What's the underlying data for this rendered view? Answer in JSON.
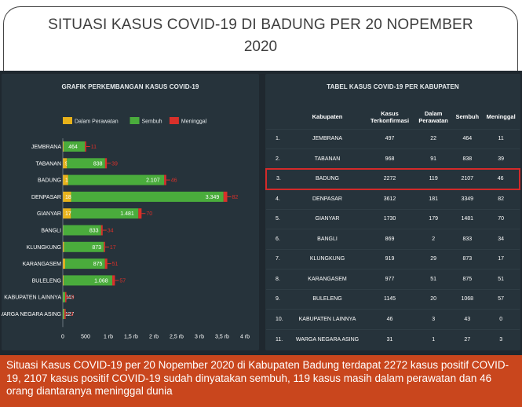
{
  "header": {
    "line1": "SITUASI KASUS COVID-19 DI BADUNG PER 20 NOPEMBER",
    "line2": "2020"
  },
  "chart_panel": {
    "title": "GRAFIK PERKEMBANGAN KASUS COVID-19"
  },
  "chart_data": {
    "type": "bar",
    "orientation": "horizontal",
    "stacked": true,
    "title": "GRAFIK PERKEMBANGAN KASUS COVID-19",
    "legend_position": "top-left",
    "categories": [
      "JEMBRANA",
      "TABANAN",
      "BADUNG",
      "DENPASAR",
      "GIANYAR",
      "BANGLI",
      "KLUNGKUNG",
      "KARANGASEM",
      "BULELENG",
      "KABUPATEN LAINNYA",
      "WARGA NEGARA ASING"
    ],
    "series": [
      {
        "name": "Dalam Perawatan",
        "color": "#e8b21a",
        "values": [
          22,
          91,
          119,
          181,
          179,
          2,
          29,
          51,
          20,
          3,
          1
        ],
        "labels": [
          "22",
          "91",
          "119",
          "181",
          "179",
          "2",
          "29",
          "51",
          "20",
          "3",
          "1"
        ]
      },
      {
        "name": "Sembuh",
        "color": "#4aac3c",
        "values": [
          464,
          838,
          2107,
          3349,
          1481,
          833,
          873,
          875,
          1068,
          43,
          27
        ],
        "labels": [
          "464",
          "838",
          "2.107",
          "3.349",
          "1.481",
          "833",
          "873",
          "875",
          "1.068",
          "43",
          "27"
        ]
      },
      {
        "name": "Meninggal",
        "color": "#d9302a",
        "values": [
          11,
          39,
          46,
          82,
          70,
          34,
          17,
          51,
          57,
          0,
          3
        ],
        "labels": [
          "11",
          "39",
          "46",
          "82",
          "70",
          "34",
          "17",
          "51",
          "57",
          "0",
          "3"
        ]
      }
    ],
    "xlim": [
      0,
      4000
    ],
    "x_ticks": [
      0,
      500,
      1000,
      1500,
      2000,
      2500,
      3000,
      3500,
      4000
    ],
    "x_tick_labels": [
      "0",
      "500",
      "1 rb",
      "1,5 rb",
      "2 rb",
      "2,5 rb",
      "3 rb",
      "3,5 rb",
      "4 rb"
    ],
    "grid": false
  },
  "table_panel": {
    "title": "TABEL KASUS COVID-19 PER KABUPATEN",
    "columns": {
      "no": "",
      "kabupaten": "Kabupaten",
      "terkonfirmasi_1": "Kasus",
      "terkonfirmasi_2": "Terkonfirmasi",
      "perawatan_1": "Dalam",
      "perawatan_2": "Perawatan",
      "sembuh": "Sembuh",
      "meninggal": "Meninggal"
    },
    "rows": [
      {
        "no": "1.",
        "name": "JEMBRANA",
        "confirmed": "497",
        "treated": "22",
        "recovered": "464",
        "died": "11"
      },
      {
        "no": "2.",
        "name": "TABANAN",
        "confirmed": "968",
        "treated": "91",
        "recovered": "838",
        "died": "39"
      },
      {
        "no": "3.",
        "name": "BADUNG",
        "confirmed": "2272",
        "treated": "119",
        "recovered": "2107",
        "died": "46"
      },
      {
        "no": "4.",
        "name": "DENPASAR",
        "confirmed": "3612",
        "treated": "181",
        "recovered": "3349",
        "died": "82"
      },
      {
        "no": "5.",
        "name": "GIANYAR",
        "confirmed": "1730",
        "treated": "179",
        "recovered": "1481",
        "died": "70"
      },
      {
        "no": "6.",
        "name": "BANGLI",
        "confirmed": "869",
        "treated": "2",
        "recovered": "833",
        "died": "34"
      },
      {
        "no": "7.",
        "name": "KLUNGKUNG",
        "confirmed": "919",
        "treated": "29",
        "recovered": "873",
        "died": "17"
      },
      {
        "no": "8.",
        "name": "KARANGASEM",
        "confirmed": "977",
        "treated": "51",
        "recovered": "875",
        "died": "51"
      },
      {
        "no": "9.",
        "name": "BULELENG",
        "confirmed": "1145",
        "treated": "20",
        "recovered": "1068",
        "died": "57"
      },
      {
        "no": "10.",
        "name": "KABUPATEN LAINNYA",
        "confirmed": "46",
        "treated": "3",
        "recovered": "43",
        "died": "0"
      },
      {
        "no": "11.",
        "name": "WARGA NEGARA ASING",
        "confirmed": "31",
        "treated": "1",
        "recovered": "27",
        "died": "3"
      }
    ],
    "highlighted_row": "BADUNG",
    "highlight_color": "#d42a2a"
  },
  "caption": {
    "text": "Situasi Kasus COVID-19 per 20 Nopember 2020 di Kabupaten Badung terdapat 2272 kasus positif COVID-19, 2107 kasus positif COVID-19 sudah dinyatakan sembuh, 119 kasus masih dalam perawatan dan 46 orang diantaranya meninggal dunia"
  }
}
